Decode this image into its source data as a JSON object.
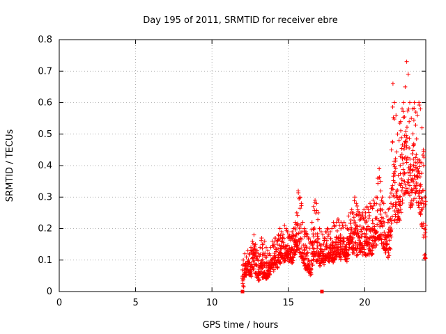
{
  "chart_data": {
    "type": "scatter",
    "title": "Day 195 of 2011, SRMTID for receiver ebre",
    "xlabel": "GPS time / hours",
    "ylabel": "SRMTID / TECUs",
    "xlim": [
      0,
      24
    ],
    "ylim": [
      0,
      0.8
    ],
    "grid": true,
    "grid_style": "dotted",
    "marker": "+",
    "marker_color": "#ff0000",
    "x_ticks": [
      0,
      5,
      10,
      15,
      20
    ],
    "x_tick_labels": [
      "0",
      "5",
      "10",
      "15",
      "20"
    ],
    "y_ticks": [
      0,
      0.1,
      0.2,
      0.3,
      0.4,
      0.5,
      0.6,
      0.7,
      0.8
    ],
    "y_tick_labels": [
      "0",
      "0.1",
      "0.2",
      "0.3",
      "0.4",
      "0.5",
      "0.6",
      "0.7",
      "0.8"
    ],
    "series": [
      {
        "name": "SRMTID",
        "description": "dense scatter of roughly 1500 points between 12h and 24h, sampled approximately",
        "x": [
          12.0,
          12.1,
          12.2,
          12.3,
          12.4,
          12.5,
          12.6,
          12.7,
          12.8,
          12.9,
          13.0,
          13.1,
          13.2,
          13.3,
          13.4,
          13.5,
          13.6,
          13.7,
          13.8,
          13.9,
          14.0,
          14.1,
          14.2,
          14.3,
          14.4,
          14.5,
          14.6,
          14.7,
          14.8,
          14.9,
          15.0,
          15.1,
          15.2,
          15.3,
          15.4,
          15.5,
          15.6,
          15.7,
          15.8,
          15.9,
          16.0,
          16.1,
          16.2,
          16.3,
          16.4,
          16.5,
          16.6,
          16.7,
          16.8,
          16.9,
          17.0,
          17.1,
          17.2,
          17.3,
          17.4,
          17.5,
          17.6,
          17.7,
          17.8,
          17.9,
          18.0,
          18.1,
          18.2,
          18.3,
          18.4,
          18.5,
          18.6,
          18.7,
          18.8,
          18.9,
          19.0,
          19.1,
          19.2,
          19.3,
          19.4,
          19.5,
          19.6,
          19.7,
          19.8,
          19.9,
          20.0,
          20.1,
          20.2,
          20.3,
          20.4,
          20.5,
          20.6,
          20.7,
          20.8,
          20.9,
          21.0,
          21.1,
          21.2,
          21.3,
          21.4,
          21.5,
          21.6,
          21.7,
          21.8,
          21.9,
          22.0,
          22.1,
          22.2,
          22.3,
          22.4,
          22.5,
          22.6,
          22.7,
          22.8,
          22.9,
          23.0,
          23.1,
          23.2,
          23.3,
          23.4,
          23.5,
          23.6,
          23.7,
          23.8,
          23.9
        ],
        "y_low": [
          0.0,
          0.03,
          0.04,
          0.05,
          0.04,
          0.03,
          0.06,
          0.05,
          0.04,
          0.03,
          0.02,
          0.04,
          0.03,
          0.02,
          0.03,
          0.02,
          0.03,
          0.04,
          0.05,
          0.06,
          0.05,
          0.07,
          0.06,
          0.08,
          0.07,
          0.09,
          0.08,
          0.07,
          0.08,
          0.09,
          0.08,
          0.09,
          0.07,
          0.08,
          0.1,
          0.11,
          0.1,
          0.09,
          0.08,
          0.07,
          0.06,
          0.05,
          0.05,
          0.04,
          0.03,
          0.05,
          0.07,
          0.08,
          0.06,
          0.07,
          0.06,
          0.07,
          0.08,
          0.07,
          0.08,
          0.09,
          0.08,
          0.09,
          0.08,
          0.07,
          0.08,
          0.09,
          0.1,
          0.09,
          0.08,
          0.1,
          0.09,
          0.08,
          0.07,
          0.09,
          0.1,
          0.11,
          0.1,
          0.09,
          0.08,
          0.09,
          0.1,
          0.1,
          0.09,
          0.1,
          0.09,
          0.1,
          0.09,
          0.1,
          0.09,
          0.1,
          0.11,
          0.12,
          0.13,
          0.12,
          0.13,
          0.12,
          0.11,
          0.1,
          0.09,
          0.08,
          0.1,
          0.12,
          0.14,
          0.15,
          0.16,
          0.17,
          0.18,
          0.2,
          0.22,
          0.24,
          0.25,
          0.24,
          0.22,
          0.2,
          0.21,
          0.22,
          0.24,
          0.26,
          0.22,
          0.2,
          0.18,
          0.15,
          0.12,
          0.07
        ],
        "y_high": [
          0.1,
          0.12,
          0.11,
          0.13,
          0.12,
          0.14,
          0.16,
          0.18,
          0.15,
          0.13,
          0.12,
          0.14,
          0.17,
          0.15,
          0.16,
          0.14,
          0.13,
          0.12,
          0.14,
          0.16,
          0.15,
          0.17,
          0.16,
          0.18,
          0.2,
          0.19,
          0.18,
          0.21,
          0.2,
          0.19,
          0.18,
          0.17,
          0.19,
          0.2,
          0.22,
          0.25,
          0.32,
          0.3,
          0.28,
          0.22,
          0.2,
          0.19,
          0.18,
          0.17,
          0.16,
          0.22,
          0.27,
          0.29,
          0.28,
          0.25,
          0.2,
          0.19,
          0.18,
          0.17,
          0.19,
          0.2,
          0.18,
          0.19,
          0.2,
          0.22,
          0.21,
          0.22,
          0.23,
          0.21,
          0.22,
          0.21,
          0.22,
          0.21,
          0.2,
          0.24,
          0.25,
          0.26,
          0.25,
          0.3,
          0.28,
          0.26,
          0.25,
          0.24,
          0.25,
          0.26,
          0.25,
          0.27,
          0.26,
          0.28,
          0.27,
          0.29,
          0.28,
          0.3,
          0.36,
          0.39,
          0.35,
          0.3,
          0.28,
          0.25,
          0.24,
          0.26,
          0.3,
          0.45,
          0.66,
          0.6,
          0.56,
          0.5,
          0.48,
          0.54,
          0.58,
          0.6,
          0.65,
          0.73,
          0.69,
          0.6,
          0.55,
          0.58,
          0.6,
          0.57,
          0.56,
          0.6,
          0.58,
          0.52,
          0.45,
          0.3
        ]
      }
    ],
    "highlight_points": [
      {
        "x": 12.0,
        "y": 0.0
      },
      {
        "x": 17.2,
        "y": 0.0
      }
    ]
  }
}
